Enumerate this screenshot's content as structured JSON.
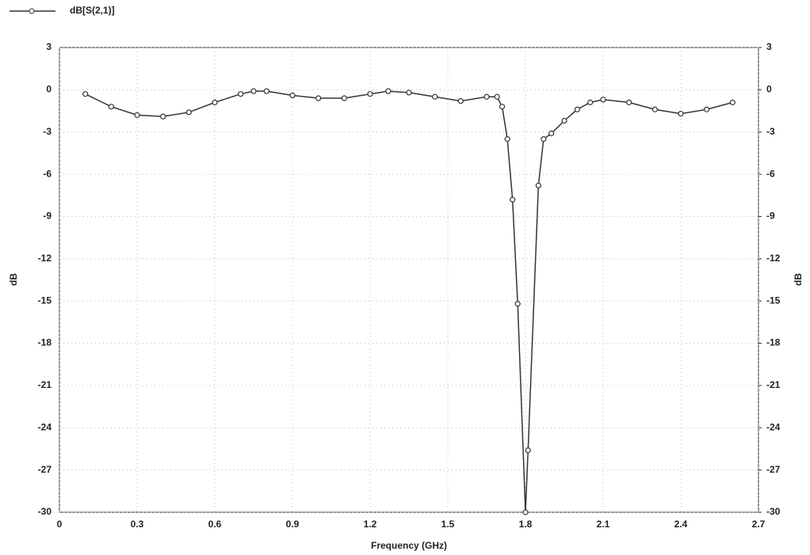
{
  "chart_data": {
    "type": "line",
    "xlabel": "Frequency (GHz)",
    "ylabel": "dB",
    "y2label": "dB",
    "series": [
      {
        "name": "dB[S(2,1)]",
        "color": "#333333",
        "x": [
          0.1,
          0.2,
          0.3,
          0.4,
          0.5,
          0.6,
          0.7,
          0.75,
          0.8,
          0.9,
          1.0,
          1.1,
          1.2,
          1.27,
          1.35,
          1.45,
          1.55,
          1.65,
          1.69,
          1.71,
          1.73,
          1.75,
          1.77,
          1.8,
          1.81,
          1.85,
          1.87,
          1.9,
          1.95,
          2.0,
          2.05,
          2.1,
          2.2,
          2.3,
          2.4,
          2.5,
          2.6
        ],
        "values": [
          -0.3,
          -1.2,
          -1.8,
          -1.9,
          -1.6,
          -0.9,
          -0.3,
          -0.1,
          -0.1,
          -0.4,
          -0.6,
          -0.6,
          -0.3,
          -0.1,
          -0.2,
          -0.5,
          -0.8,
          -0.5,
          -0.5,
          -1.2,
          -3.5,
          -7.8,
          -15.2,
          -30,
          -25.6,
          -6.8,
          -3.5,
          -3.1,
          -2.2,
          -1.4,
          -0.9,
          -0.7,
          -0.9,
          -1.4,
          -1.7,
          -1.4,
          -0.9
        ]
      }
    ],
    "xlim": [
      0,
      2.7
    ],
    "xticks": [
      0,
      0.3,
      0.6,
      0.9,
      1.2,
      1.5,
      1.8,
      2.1,
      2.4,
      2.7
    ],
    "ylim": [
      -30,
      3
    ],
    "yticks": [
      3,
      0,
      -3,
      -6,
      -9,
      -12,
      -15,
      -18,
      -21,
      -24,
      -27,
      -30
    ],
    "y2lim": [
      -30,
      3
    ],
    "y2ticks": [
      3,
      0,
      -3,
      -6,
      -9,
      -12,
      -15,
      -18,
      -21,
      -24,
      -27,
      -30
    ],
    "grid": true
  }
}
